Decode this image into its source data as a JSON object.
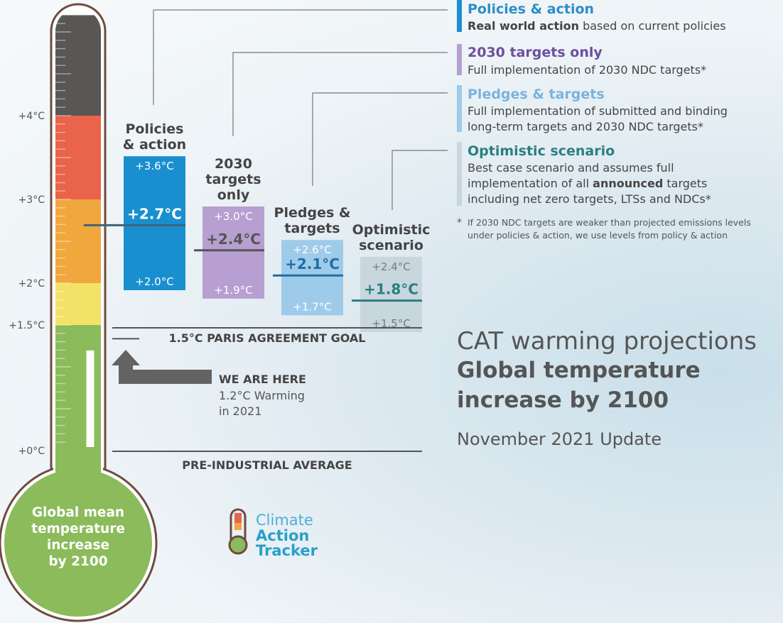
{
  "legend": [
    {
      "title": "Policies & action",
      "desc_bold": "Real world action",
      "desc": " based on current policies",
      "color": "#1a8fcf",
      "title_color": "#2a8fc6"
    },
    {
      "title": "2030 targets only",
      "desc": "Full implementation of 2030 NDC targets*",
      "color": "#b79fd1",
      "title_color": "#6d4f9e"
    },
    {
      "title": "Pledges & targets",
      "desc": "Full implementation of submitted and binding",
      "desc2": "long-term targets and 2030 NDC targets*",
      "color": "#9fcbea",
      "title_color": "#79b3dd"
    },
    {
      "title": "Optimistic scenario",
      "desc": "Best case scenario and assumes full",
      "desc2_pre": "implementation of all ",
      "desc2_bold": "announced",
      "desc2_post": " targets",
      "desc3": "including net zero targets, LTSs and NDCs*",
      "color": "#c8d6de",
      "title_color": "#2a7f80"
    }
  ],
  "footnote": {
    "line1": "If 2030 NDC targets are weaker than projected emissions levels",
    "line2": "under policies & action, we use levels from policy & action"
  },
  "side_title": {
    "line1": "CAT warming projections",
    "line2": "Global temperature",
    "line3": "increase by 2100",
    "line4": "November 2021 Update"
  },
  "bulb_text": [
    "Global mean",
    "temperature",
    "increase",
    "by 2100"
  ],
  "we_are_here": {
    "title": "WE ARE HERE",
    "line1": "1.2°C Warming",
    "line2": "in 2021"
  },
  "paris_goal": "1.5°C PARIS AGREEMENT GOAL",
  "preindustrial": "PRE-INDUSTRIAL AVERAGE",
  "logo": [
    "Climate",
    "Action",
    "Tracker"
  ],
  "colors": {
    "thermo_dark": "#585756",
    "thermo_red": "#e9644a",
    "thermo_orange": "#f0a73e",
    "thermo_yellow": "#f3e268",
    "thermo_green": "#8bbb5a",
    "outline": "#6e4a3f"
  },
  "chart_data": {
    "type": "bar",
    "unit": "°C",
    "y_ticks": [
      {
        "value": 0,
        "label": "+0°C"
      },
      {
        "value": 1.5,
        "label": "+1.5°C"
      },
      {
        "value": 2,
        "label": "+2°C"
      },
      {
        "value": 3,
        "label": "+3°C"
      },
      {
        "value": 4,
        "label": "+4°C"
      }
    ],
    "current_warming": 1.2,
    "paris_goal": 1.5,
    "scenarios": [
      {
        "name": "Policies & action",
        "label_lines": [
          "Policies",
          "& action"
        ],
        "high": 3.6,
        "central": 2.7,
        "low": 2.0,
        "high_label": "+3.6°C",
        "central_label": "+2.7°C",
        "low_label": "+2.0°C",
        "color": "#1a8fcf"
      },
      {
        "name": "2030 targets only",
        "label_lines": [
          "2030",
          "targets",
          "only"
        ],
        "high": 3.0,
        "central": 2.4,
        "low": 1.9,
        "high_label": "+3.0°C",
        "central_label": "+2.4°C",
        "low_label": "+1.9°C",
        "color": "#b79fd1"
      },
      {
        "name": "Pledges & targets",
        "label_lines": [
          "Pledges &",
          "targets"
        ],
        "high": 2.6,
        "central": 2.1,
        "low": 1.7,
        "high_label": "+2.6°C",
        "central_label": "+2.1°C",
        "low_label": "+1.7°C",
        "color": "#9fcbea"
      },
      {
        "name": "Optimistic scenario",
        "label_lines": [
          "Optimistic",
          "scenario"
        ],
        "high": 2.4,
        "central": 1.8,
        "low": 1.5,
        "high_label": "+2.4°C",
        "central_label": "+1.8°C",
        "low_label": "+1.5°C",
        "color": "#c8d6de"
      }
    ]
  }
}
